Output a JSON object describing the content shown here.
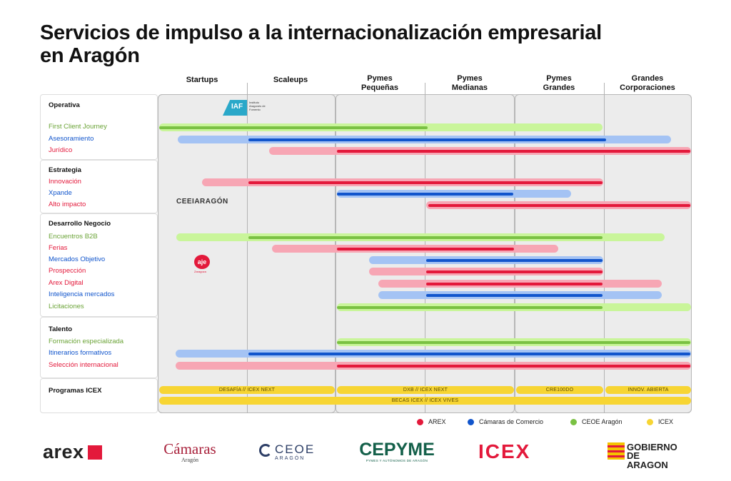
{
  "title_line1": "Servicios de impulso a la internacionalización empresarial",
  "title_line2": "en Aragón",
  "columns": [
    "Startups",
    "Scaleups",
    "Pymes\nPequeñas",
    "Pymes\nMedianas",
    "Pymes\nGrandes",
    "Grandes\nCorporaciones"
  ],
  "colors": {
    "arex": "#e3193b",
    "arex_light": "#f7a6b4",
    "camaras": "#1155cc",
    "camaras_light": "#a4c3f4",
    "ceoe": "#7ac143",
    "ceoe_light": "#c9f59a",
    "icex": "#f7d533"
  },
  "sections": [
    {
      "title": "Operativa",
      "rows": [
        {
          "label": "First Client Journey",
          "color": "ceoe",
          "bar": [
            0.0,
            4.99
          ],
          "line": [
            0.0,
            3.05
          ]
        },
        {
          "label": "Asesoramiento",
          "color": "camaras",
          "bar": [
            0.21,
            5.77
          ],
          "line": [
            1.0,
            5.04
          ]
        },
        {
          "label": "Jurídico",
          "color": "arex",
          "bar": [
            1.23,
            6.0
          ],
          "line": [
            2.0,
            6.0
          ]
        }
      ]
    },
    {
      "title": "Estrategia",
      "rows": [
        {
          "label": "Innovación",
          "color": "arex",
          "bar": [
            0.48,
            5.0
          ],
          "line": [
            1.0,
            5.0
          ]
        },
        {
          "label": "Xpande",
          "color": "camaras",
          "bar": [
            2.0,
            4.64
          ],
          "line": [
            2.0,
            4.0
          ]
        },
        {
          "label": "Alto impacto",
          "color": "arex",
          "bar": [
            3.0,
            6.0
          ],
          "line": [
            3.02,
            6.0
          ]
        }
      ]
    },
    {
      "title": "Desarrollo Negocio",
      "rows": [
        {
          "label": "Encuentros B2B",
          "color": "ceoe",
          "bar": [
            0.19,
            5.7
          ],
          "line": [
            1.0,
            5.0
          ]
        },
        {
          "label": "Ferias",
          "color": "arex",
          "bar": [
            1.27,
            4.5
          ],
          "line": [
            2.0,
            4.01
          ]
        },
        {
          "label": "Mercados Objetivo",
          "color": "camaras",
          "bar": [
            2.36,
            5.0
          ],
          "line": [
            3.0,
            5.0
          ]
        },
        {
          "label": "Prospección",
          "color": "arex",
          "bar": [
            2.36,
            5.0
          ],
          "line": [
            3.0,
            5.0
          ]
        },
        {
          "label": "Arex Digital",
          "color": "arex",
          "bar": [
            2.46,
            5.67
          ],
          "line": [
            3.0,
            5.0
          ]
        },
        {
          "label": "Inteligencia mercados",
          "color": "camaras",
          "bar": [
            2.46,
            5.67
          ],
          "line": [
            3.0,
            5.0
          ]
        },
        {
          "label": "Licitaciones",
          "color": "ceoe",
          "bar": [
            2.0,
            6.0
          ],
          "line": [
            2.0,
            5.0
          ]
        }
      ]
    },
    {
      "title": "Talento",
      "rows": [
        {
          "label": "Formación especializada",
          "color": "ceoe",
          "bar": [
            2.0,
            6.0
          ],
          "line": [
            2.0,
            6.0
          ]
        },
        {
          "label": "Itinerarios formativos",
          "color": "camaras",
          "bar": [
            0.18,
            6.0
          ],
          "line": [
            1.0,
            6.0
          ]
        },
        {
          "label": "Selección internacional",
          "color": "arex",
          "bar": [
            0.18,
            6.0
          ],
          "line": [
            2.0,
            6.0
          ]
        }
      ]
    }
  ],
  "icex": {
    "title": "Programas ICEX",
    "bars_row1": [
      {
        "text": "DESAFÍA  //  ICEX NEXT",
        "range": [
          0.0,
          2.0
        ]
      },
      {
        "text": "DXB  //  ICEX NEXT",
        "range": [
          2.0,
          4.0
        ]
      },
      {
        "text": "CRE100DO",
        "range": [
          4.0,
          5.0
        ]
      },
      {
        "text": "INNOV. ABIERTA",
        "range": [
          5.0,
          6.0
        ]
      }
    ],
    "bars_row2": [
      {
        "text": "BECAS ICEX  //  ICEX VIVES",
        "range": [
          0.0,
          6.0
        ]
      }
    ]
  },
  "legend": [
    {
      "label": "AREX",
      "color": "#e3193b"
    },
    {
      "label": "Cámaras de Comercio",
      "color": "#1155cc"
    },
    {
      "label": "CEOE Aragón",
      "color": "#7ac143"
    },
    {
      "label": "ICEX",
      "color": "#f7d533"
    }
  ],
  "inline_logos": {
    "iaf": {
      "mark": "IAF",
      "text": "Instituto Aragonés de Fomento"
    },
    "ceei": "CEEIARAGÓN",
    "aje": {
      "mark": "aje",
      "text": "Zaragoza"
    }
  },
  "footer_logos": {
    "arex": "arex",
    "camaras": {
      "name": "Cámaras",
      "sub": "Aragón"
    },
    "ceoe": {
      "name": "CEOE",
      "sub": "ARAGÓN"
    },
    "cepyme": {
      "name": "CEPYME",
      "sub": "PYMES Y AUTÓNOMOS DE ARAGÓN"
    },
    "icex": "ICEX",
    "gobierno": {
      "line1": "GOBIERNO",
      "line2": "DE ARAGON"
    }
  }
}
